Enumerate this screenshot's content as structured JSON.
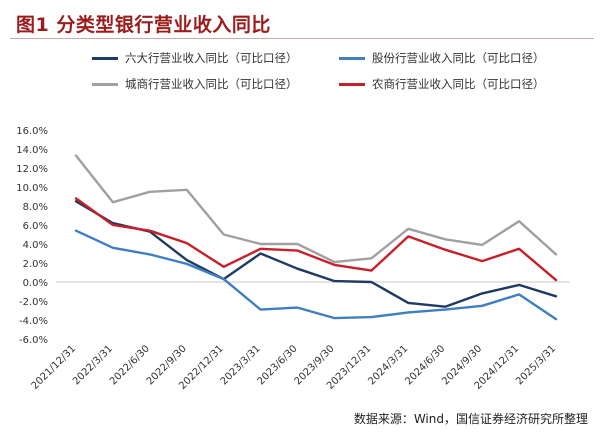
{
  "title": "图1  分类型银行营业收入同比",
  "source": "数据来源：Wind，国信证券经济研究所整理",
  "chart_data": {
    "type": "line",
    "title": "图1  分类型银行营业收入同比",
    "categories": [
      "2021/12/31",
      "2022/3/31",
      "2022/6/30",
      "2022/9/30",
      "2022/12/31",
      "2023/3/31",
      "2023/6/30",
      "2023/9/30",
      "2023/12/31",
      "2024/3/31",
      "2024/6/30",
      "2024/9/30",
      "2024/12/31",
      "2025/3/31"
    ],
    "ylim": [
      -6,
      16
    ],
    "yticks": [
      -6,
      -4,
      -2,
      0,
      2,
      4,
      6,
      8,
      10,
      12,
      14,
      16
    ],
    "ytick_labels": [
      "-6.0%",
      "-4.0%",
      "-2.0%",
      "0.0%",
      "2.0%",
      "4.0%",
      "6.0%",
      "8.0%",
      "10.0%",
      "12.0%",
      "14.0%",
      "16.0%"
    ],
    "legend_position": "top",
    "grid": false,
    "series": [
      {
        "name": "六大行营业收入同比（可比口径）",
        "color": "#1f3b63",
        "values": [
          8.5,
          6.2,
          5.3,
          2.3,
          0.3,
          3.0,
          1.4,
          0.1,
          0.0,
          -2.2,
          -2.6,
          -1.2,
          -0.3,
          -1.5
        ]
      },
      {
        "name": "股份行营业收入同比（可比口径）",
        "color": "#3f7fc1",
        "values": [
          5.4,
          3.6,
          2.9,
          1.9,
          0.3,
          -2.9,
          -2.7,
          -3.8,
          -3.7,
          -3.2,
          -2.9,
          -2.5,
          -1.3,
          -3.9
        ]
      },
      {
        "name": "城商行营业收入同比（可比口径）",
        "color": "#a0a0a0",
        "values": [
          13.3,
          8.4,
          9.5,
          9.7,
          5.0,
          4.0,
          4.0,
          2.1,
          2.5,
          5.6,
          4.5,
          3.9,
          6.4,
          2.9
        ]
      },
      {
        "name": "农商行营业收入同比（可比口径）",
        "color": "#c8202a",
        "values": [
          8.8,
          6.0,
          5.4,
          4.1,
          1.6,
          3.5,
          3.3,
          1.8,
          1.2,
          4.8,
          3.4,
          2.2,
          3.5,
          0.2
        ]
      }
    ]
  }
}
